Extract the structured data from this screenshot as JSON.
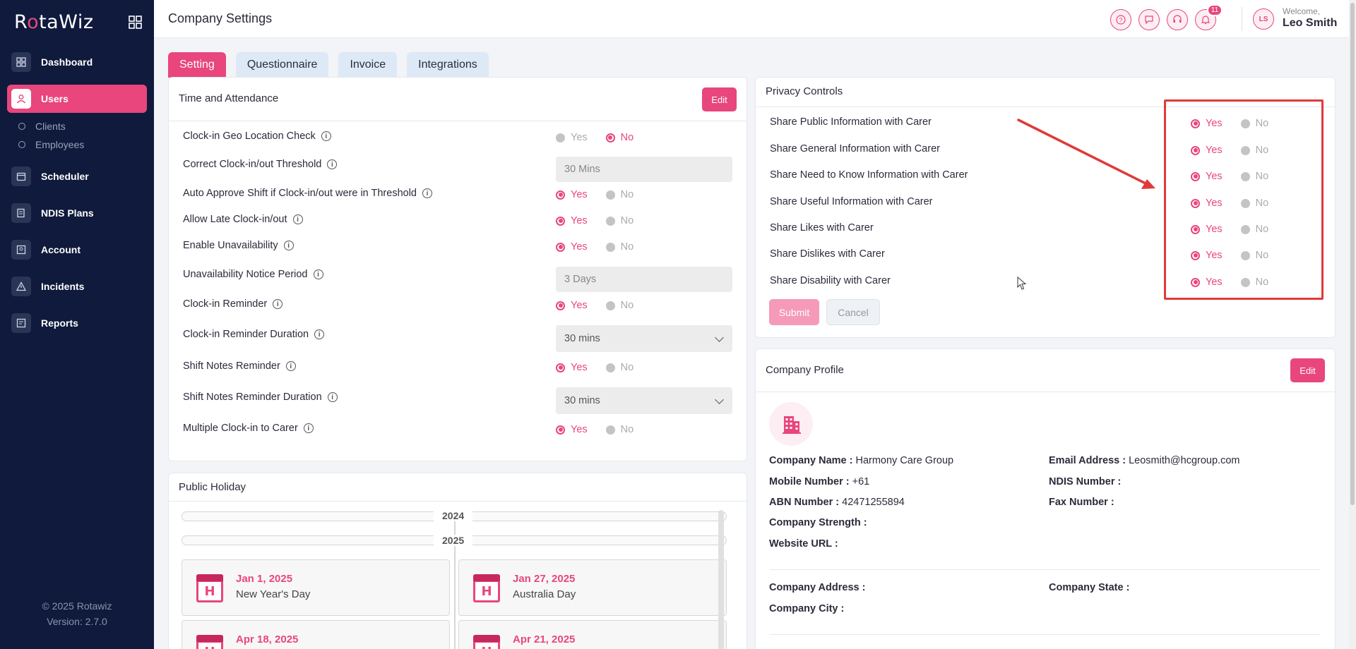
{
  "app": {
    "logo": "RotaWiz",
    "footer_copyright": "© 2025 Rotawiz",
    "footer_version": "Version: 2.7.0"
  },
  "colors": {
    "accent": "#e8467c",
    "sidebar_bg": "#0f1a3c",
    "tab_bg": "#dde9f7"
  },
  "sidebar": {
    "items": [
      {
        "label": "Dashboard",
        "icon": "dashboard-icon"
      },
      {
        "label": "Users",
        "icon": "user-icon",
        "active": true
      },
      {
        "label": "Scheduler",
        "icon": "calendar-icon"
      },
      {
        "label": "NDIS Plans",
        "icon": "plan-icon"
      },
      {
        "label": "Account",
        "icon": "account-icon"
      },
      {
        "label": "Incidents",
        "icon": "warning-icon"
      },
      {
        "label": "Reports",
        "icon": "report-icon"
      }
    ],
    "sub_items": [
      "Clients",
      "Employees"
    ]
  },
  "header": {
    "title": "Company Settings",
    "notification_count": "11",
    "avatar_initials": "LS",
    "welcome": "Welcome,",
    "user_name": "Leo Smith"
  },
  "tabs": [
    "Setting",
    "Questionnaire",
    "Invoice",
    "Integrations"
  ],
  "time_attendance": {
    "title": "Time and Attendance",
    "edit_label": "Edit",
    "yes_label": "Yes",
    "no_label": "No",
    "rows": [
      {
        "label": "Clock-in Geo Location Check",
        "type": "radio",
        "value": "No"
      },
      {
        "label": "Correct Clock-in/out Threshold",
        "type": "field",
        "value": "30  Mins"
      },
      {
        "label": "Auto Approve Shift if Clock-in/out were in Threshold",
        "type": "radio",
        "value": "Yes"
      },
      {
        "label": "Allow Late Clock-in/out",
        "type": "radio",
        "value": "Yes"
      },
      {
        "label": "Enable Unavailability",
        "type": "radio",
        "value": "Yes"
      },
      {
        "label": "Unavailability Notice Period",
        "type": "field",
        "value": "3  Days"
      },
      {
        "label": "Clock-in Reminder",
        "type": "radio",
        "value": "Yes"
      },
      {
        "label": "Clock-in Reminder Duration",
        "type": "select",
        "value": "30 mins"
      },
      {
        "label": "Shift Notes Reminder",
        "type": "radio",
        "value": "Yes"
      },
      {
        "label": "Shift Notes Reminder Duration",
        "type": "select",
        "value": "30 mins"
      },
      {
        "label": "Multiple Clock-in to Carer",
        "type": "radio",
        "value": "Yes"
      }
    ]
  },
  "public_holiday": {
    "title": "Public Holiday",
    "years": [
      "2024",
      "2025"
    ],
    "holidays": [
      {
        "date": "Jan 1, 2025",
        "name": "New Year's Day"
      },
      {
        "date": "Jan 27, 2025",
        "name": "Australia Day"
      },
      {
        "date": "Apr 18, 2025",
        "name": ""
      },
      {
        "date": "Apr 21, 2025",
        "name": ""
      }
    ],
    "calendar_letter": "H"
  },
  "privacy": {
    "title": "Privacy Controls",
    "yes_label": "Yes",
    "no_label": "No",
    "rows": [
      "Share Public Information with Carer",
      "Share General Information with Carer",
      "Share Need to Know Information with Carer",
      "Share Useful Information with Carer",
      "Share Likes with Carer",
      "Share Dislikes with Carer",
      "Share Disability with Carer"
    ],
    "submit_label": "Submit",
    "cancel_label": "Cancel"
  },
  "company_profile": {
    "title": "Company Profile",
    "edit_label": "Edit",
    "company_name_label": "Company Name :",
    "company_name": "Harmony Care Group",
    "email_label": "Email Address :",
    "email": "Leosmith@hcgroup.com",
    "mobile_label": "Mobile Number :",
    "mobile": "+61",
    "ndis_label": "NDIS Number :",
    "abn_label": "ABN Number :",
    "abn": "42471255894",
    "fax_label": "Fax Number :",
    "strength_label": "Company Strength :",
    "website_label": "Website URL :",
    "address_label": "Company Address :",
    "state_label": "Company State :",
    "city_label": "Company City :"
  }
}
